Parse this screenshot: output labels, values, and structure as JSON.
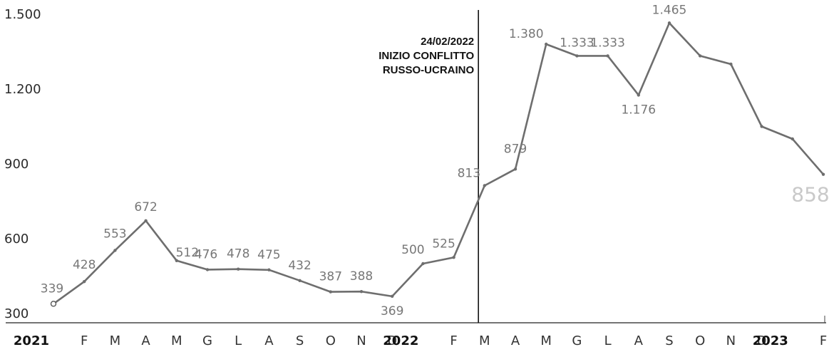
{
  "chart_data": {
    "type": "line",
    "title": "",
    "xlabel": "",
    "ylabel": "",
    "ylim": [
      300,
      1500
    ],
    "y_ticks": [
      "1.500",
      "1.200",
      "900",
      "600",
      "300"
    ],
    "y_tick_values": [
      1500,
      1200,
      900,
      600,
      300
    ],
    "x_labels": [
      "2021",
      "F",
      "M",
      "A",
      "M",
      "G",
      "L",
      "A",
      "S",
      "O",
      "N",
      "D",
      "2022",
      "F",
      "M",
      "A",
      "M",
      "G",
      "L",
      "A",
      "S",
      "O",
      "N",
      "D",
      "2023",
      "F"
    ],
    "year_label_indices": [
      0,
      12,
      24
    ],
    "series": [
      {
        "values": [
          339,
          428,
          553,
          672,
          512,
          476,
          478,
          475,
          432,
          387,
          388,
          369,
          500,
          525,
          813,
          879,
          1380,
          1333,
          1333,
          1176,
          1465,
          1333,
          1300,
          1050,
          1000,
          858
        ],
        "labels": [
          "339",
          "428",
          "553",
          "672",
          "512",
          "476",
          "478",
          "475",
          "432",
          "387",
          "388",
          "369",
          "500",
          "525",
          "813",
          "879",
          "1.380",
          "1.333",
          "1.333",
          "1.176",
          "1.465",
          "",
          "",
          "",
          "",
          "858"
        ]
      }
    ],
    "line_color": "#6e6e6e",
    "grid": false,
    "annotation": {
      "lines": [
        "24/02/2022",
        "INIZIO CONFLITTO",
        "RUSSO-UCRAINO"
      ],
      "x_value": 13.8
    }
  }
}
